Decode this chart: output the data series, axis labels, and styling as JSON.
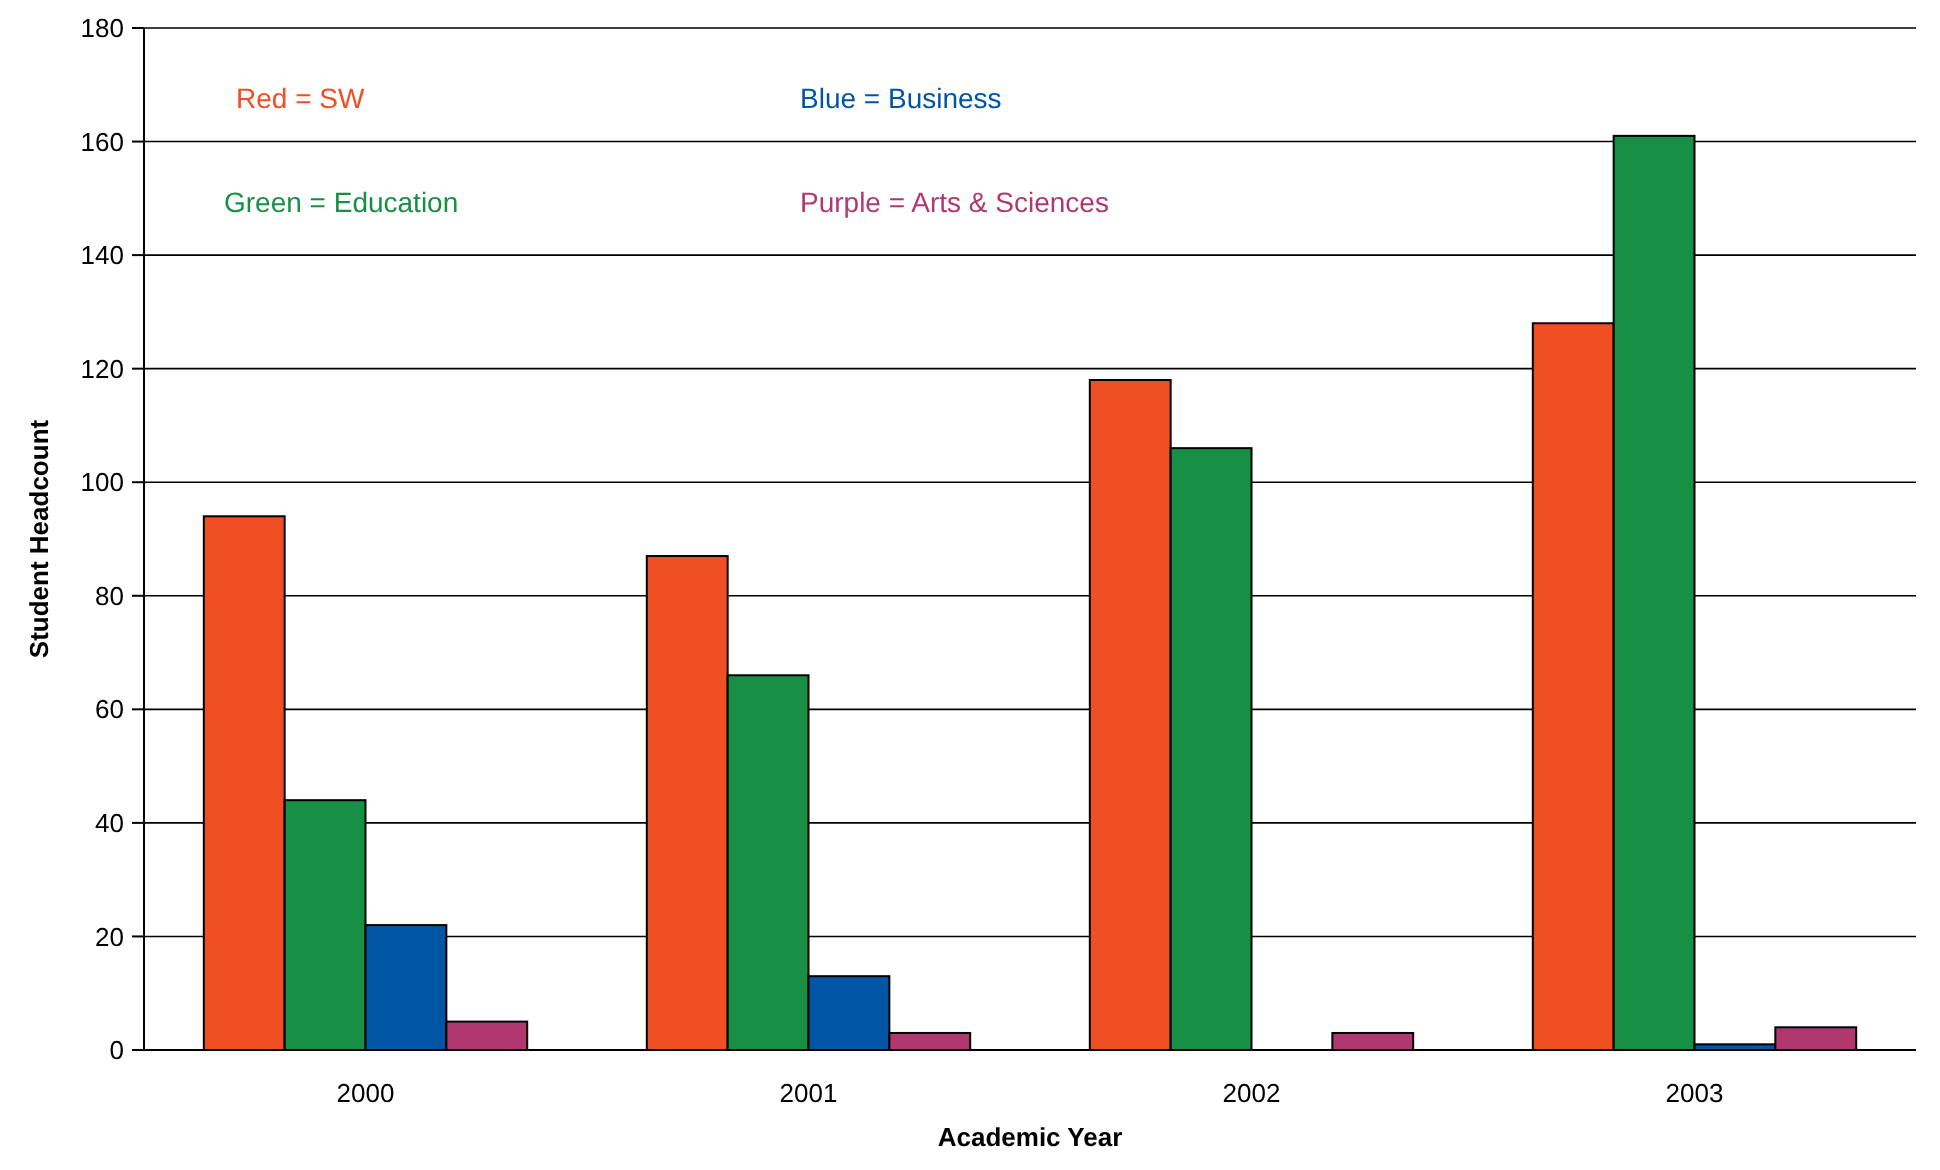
{
  "chart_data": {
    "type": "bar",
    "xlabel": "Academic Year",
    "ylabel": "Student Headcount",
    "categories": [
      "2000",
      "2001",
      "2002",
      "2003"
    ],
    "series": [
      {
        "name": "Red = SW",
        "color": "#f04e23",
        "values": [
          94,
          87,
          118,
          128
        ]
      },
      {
        "name": "Green = Education",
        "color": "#178f45",
        "values": [
          44,
          66,
          106,
          161
        ]
      },
      {
        "name": "Blue = Business",
        "color": "#0055a5",
        "values": [
          22,
          13,
          null,
          1
        ]
      },
      {
        "name": "Purple = Arts & Sciences",
        "color": "#b0386e",
        "values": [
          5,
          3,
          3,
          4
        ]
      }
    ],
    "ylim": [
      0,
      180
    ],
    "yticks": [
      0,
      20,
      40,
      60,
      80,
      100,
      120,
      140,
      160,
      180
    ],
    "grid": "y",
    "legend": "top left"
  }
}
